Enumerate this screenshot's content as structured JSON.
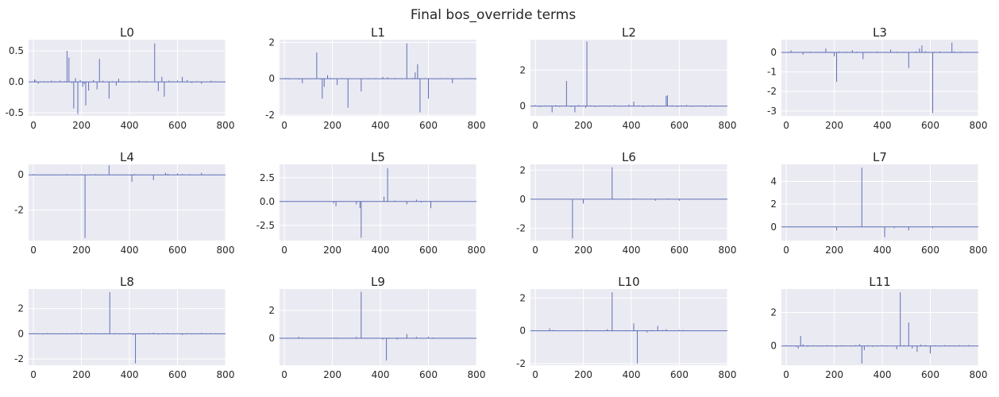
{
  "figure": {
    "suptitle": "Final bos_override terms"
  },
  "colors": {
    "axes_bg": "#EAEAF2",
    "grid": "#FFFFFF",
    "bar": "#5A6BB5",
    "text": "#262626"
  },
  "chart_data": [
    {
      "type": "bar",
      "title": "L0",
      "xlim": [
        -20,
        800
      ],
      "ylim": [
        -0.55,
        0.68
      ],
      "xticks": [
        0,
        200,
        400,
        600,
        800
      ],
      "yticks": [
        -0.5,
        0.0,
        0.5
      ],
      "ytick_labels": [
        "-0.5",
        "0.0",
        "0.5"
      ],
      "x": [
        5,
        10,
        20,
        30,
        45,
        60,
        75,
        90,
        110,
        130,
        140,
        148,
        160,
        168,
        175,
        185,
        195,
        205,
        212,
        218,
        230,
        250,
        265,
        275,
        290,
        315,
        330,
        345,
        355,
        380,
        410,
        440,
        470,
        505,
        520,
        535,
        545,
        565,
        580,
        600,
        620,
        640,
        660,
        680,
        700,
        740,
        760
      ],
      "values": [
        0.04,
        0.02,
        -0.03,
        0.01,
        0.01,
        -0.01,
        0.02,
        0.01,
        0.02,
        0.01,
        0.5,
        0.39,
        -0.02,
        -0.43,
        0.06,
        -0.52,
        0.03,
        -0.08,
        -0.04,
        -0.38,
        -0.14,
        0.03,
        -0.12,
        0.37,
        0.02,
        -0.27,
        0.01,
        -0.06,
        0.05,
        0.01,
        0.01,
        0.02,
        0.01,
        0.62,
        -0.15,
        0.08,
        -0.24,
        0.02,
        0.01,
        0.02,
        0.08,
        0.03,
        -0.02,
        0.01,
        -0.03,
        0.02,
        0.01
      ]
    },
    {
      "type": "bar",
      "title": "L1",
      "xlim": [
        -20,
        800
      ],
      "ylim": [
        -2.05,
        2.15
      ],
      "xticks": [
        0,
        200,
        400,
        600,
        800
      ],
      "yticks": [
        -2,
        0,
        2
      ],
      "ytick_labels": [
        "-2",
        "0",
        "2"
      ],
      "x": [
        5,
        20,
        40,
        60,
        75,
        95,
        115,
        135,
        150,
        158,
        166,
        180,
        192,
        205,
        220,
        240,
        265,
        290,
        320,
        350,
        380,
        410,
        430,
        460,
        490,
        510,
        535,
        545,
        555,
        565,
        585,
        600,
        625,
        650,
        680,
        700,
        730,
        760
      ],
      "values": [
        0.05,
        -0.03,
        0.02,
        -0.04,
        -0.25,
        0.01,
        0.02,
        1.45,
        -0.02,
        -1.1,
        -0.45,
        0.2,
        0.05,
        0.01,
        -0.35,
        0.03,
        -1.6,
        0.02,
        -0.7,
        0.01,
        0.03,
        0.1,
        0.08,
        0.04,
        0.02,
        1.95,
        0.05,
        0.35,
        0.8,
        -1.85,
        0.03,
        -1.1,
        0.01,
        0.02,
        0.03,
        -0.25,
        0.02,
        0.03
      ]
    },
    {
      "type": "bar",
      "title": "L2",
      "xlim": [
        -20,
        800
      ],
      "ylim": [
        -0.55,
        3.7
      ],
      "xticks": [
        0,
        200,
        400,
        600,
        800
      ],
      "yticks": [
        0,
        2
      ],
      "ytick_labels": [
        "0",
        "2"
      ],
      "x": [
        0,
        20,
        40,
        60,
        70,
        85,
        100,
        115,
        130,
        150,
        165,
        180,
        200,
        210,
        215,
        230,
        250,
        270,
        290,
        310,
        330,
        350,
        375,
        390,
        410,
        430,
        450,
        470,
        490,
        510,
        530,
        545,
        550,
        570,
        590,
        610,
        630,
        650,
        670,
        690,
        710,
        730,
        750,
        770
      ],
      "values": [
        0.05,
        -0.05,
        0.03,
        0.02,
        -0.35,
        0.05,
        -0.04,
        0.02,
        1.4,
        -0.05,
        -0.35,
        0.05,
        0.03,
        -0.1,
        3.6,
        0.04,
        -0.05,
        0.03,
        0.02,
        -0.04,
        0.05,
        -0.03,
        0.02,
        0.08,
        0.25,
        0.04,
        -0.06,
        0.03,
        0.05,
        -0.04,
        0.02,
        0.55,
        0.6,
        0.04,
        -0.05,
        0.03,
        0.06,
        -0.04,
        0.02,
        0.03,
        -0.05,
        0.04,
        -0.03,
        0.02
      ]
    },
    {
      "type": "bar",
      "title": "L3",
      "xlim": [
        -20,
        800
      ],
      "ylim": [
        -3.25,
        0.65
      ],
      "xticks": [
        0,
        200,
        400,
        600,
        800
      ],
      "yticks": [
        -3,
        -2,
        -1,
        0
      ],
      "ytick_labels": [
        "-3",
        "-2",
        "-1",
        "0"
      ],
      "x": [
        20,
        45,
        70,
        100,
        130,
        150,
        165,
        185,
        200,
        210,
        220,
        250,
        275,
        295,
        320,
        350,
        380,
        410,
        435,
        460,
        485,
        510,
        540,
        555,
        565,
        580,
        610,
        640,
        670,
        690,
        700,
        730,
        750
      ],
      "values": [
        0.1,
        0.02,
        -0.12,
        0.04,
        0.02,
        0.03,
        0.2,
        0.03,
        -0.2,
        -1.5,
        0.05,
        0.03,
        0.12,
        0.04,
        -0.35,
        0.03,
        0.05,
        0.02,
        0.15,
        0.04,
        0.03,
        -0.8,
        0.05,
        0.2,
        0.35,
        0.06,
        -3.1,
        0.05,
        0.03,
        0.5,
        0.05,
        0.04,
        0.03
      ]
    },
    {
      "type": "bar",
      "title": "L4",
      "xlim": [
        -20,
        800
      ],
      "ylim": [
        -3.75,
        0.6
      ],
      "xticks": [
        0,
        200,
        400,
        600,
        800
      ],
      "yticks": [
        -2,
        0
      ],
      "ytick_labels": [
        "-2",
        "0"
      ],
      "x": [
        0,
        30,
        70,
        140,
        200,
        215,
        260,
        315,
        360,
        410,
        420,
        450,
        500,
        550,
        560,
        600,
        620,
        650,
        700,
        750
      ],
      "values": [
        0.05,
        0.03,
        0.02,
        0.05,
        0.04,
        -3.6,
        0.05,
        0.55,
        0.03,
        -0.4,
        0.05,
        0.03,
        -0.3,
        0.12,
        0.06,
        0.08,
        0.05,
        0.04,
        0.12,
        0.03
      ]
    },
    {
      "type": "bar",
      "title": "L5",
      "xlim": [
        -20,
        800
      ],
      "ylim": [
        -4.1,
        3.9
      ],
      "xticks": [
        0,
        200,
        400,
        600,
        800
      ],
      "yticks": [
        -2.5,
        0.0,
        2.5
      ],
      "ytick_labels": [
        "-2.5",
        "0.0",
        "2.5"
      ],
      "x": [
        205,
        215,
        300,
        315,
        320,
        415,
        430,
        460,
        510,
        550,
        570,
        610
      ],
      "values": [
        -0.2,
        -0.5,
        -0.3,
        -0.7,
        -3.8,
        0.5,
        3.5,
        0.1,
        -0.3,
        0.2,
        -0.1,
        -0.7
      ]
    },
    {
      "type": "bar",
      "title": "L6",
      "xlim": [
        -20,
        800
      ],
      "ylim": [
        -2.85,
        2.4
      ],
      "xticks": [
        0,
        200,
        400,
        600,
        800
      ],
      "yticks": [
        -2,
        0,
        2
      ],
      "ytick_labels": [
        "-2",
        "0",
        "2"
      ],
      "x": [
        155,
        200,
        320,
        410,
        500,
        550,
        600
      ],
      "values": [
        -2.7,
        -0.3,
        2.2,
        0.05,
        -0.1,
        0.05,
        -0.1
      ]
    },
    {
      "type": "bar",
      "title": "L7",
      "xlim": [
        -20,
        800
      ],
      "ylim": [
        -1.2,
        5.5
      ],
      "xticks": [
        0,
        200,
        400,
        600,
        800
      ],
      "yticks": [
        0,
        2,
        4
      ],
      "ytick_labels": [
        "0",
        "2",
        "4"
      ],
      "x": [
        0,
        50,
        100,
        150,
        200,
        210,
        250,
        300,
        315,
        350,
        380,
        410,
        450,
        490,
        510,
        560,
        610,
        650,
        700,
        750,
        770
      ],
      "values": [
        0.03,
        0.02,
        0.03,
        0.02,
        0.05,
        -0.3,
        0.03,
        0.05,
        5.2,
        0.04,
        0.05,
        -0.9,
        -0.1,
        0.05,
        -0.3,
        0.04,
        -0.1,
        0.03,
        0.03,
        0.02,
        0.03
      ]
    },
    {
      "type": "bar",
      "title": "L8",
      "xlim": [
        -20,
        800
      ],
      "ylim": [
        -2.5,
        3.55
      ],
      "xticks": [
        0,
        200,
        400,
        600,
        800
      ],
      "yticks": [
        -2,
        0,
        2
      ],
      "ytick_labels": [
        "-2",
        "0",
        "2"
      ],
      "x": [
        0,
        20,
        40,
        60,
        80,
        100,
        120,
        140,
        160,
        180,
        200,
        220,
        240,
        260,
        280,
        300,
        318,
        340,
        360,
        380,
        400,
        415,
        425,
        440,
        460,
        480,
        500,
        520,
        540,
        560,
        580,
        600,
        620,
        640,
        660,
        680,
        700,
        720,
        740,
        760
      ],
      "values": [
        0.05,
        0.03,
        -0.04,
        0.06,
        0.02,
        -0.05,
        0.04,
        0.03,
        -0.03,
        0.05,
        0.08,
        -0.04,
        0.03,
        0.05,
        -0.02,
        0.04,
        3.3,
        0.05,
        -0.04,
        0.03,
        0.06,
        -0.1,
        -2.35,
        -0.05,
        0.03,
        0.05,
        0.08,
        -0.04,
        0.03,
        0.06,
        -0.03,
        0.04,
        -0.1,
        0.05,
        -0.03,
        0.04,
        0.06,
        -0.03,
        0.05,
        0.04
      ]
    },
    {
      "type": "bar",
      "title": "L9",
      "xlim": [
        -20,
        800
      ],
      "ylim": [
        -1.95,
        3.55
      ],
      "xticks": [
        0,
        200,
        400,
        600,
        800
      ],
      "yticks": [
        0,
        2
      ],
      "ytick_labels": [
        "0",
        "2"
      ],
      "x": [
        60,
        75,
        215,
        300,
        320,
        410,
        425,
        435,
        470,
        510,
        550,
        600,
        620
      ],
      "values": [
        0.1,
        0.05,
        0.05,
        0.1,
        3.35,
        -0.1,
        -1.6,
        -0.05,
        -0.1,
        0.3,
        0.1,
        0.1,
        0.05
      ]
    },
    {
      "type": "bar",
      "title": "L10",
      "xlim": [
        -20,
        800
      ],
      "ylim": [
        -2.1,
        2.55
      ],
      "xticks": [
        0,
        200,
        400,
        600,
        800
      ],
      "yticks": [
        -2,
        0,
        2
      ],
      "ytick_labels": [
        "-2",
        "0",
        "2"
      ],
      "x": [
        60,
        75,
        215,
        300,
        320,
        410,
        425,
        465,
        485,
        510,
        530,
        545,
        600,
        615
      ],
      "values": [
        0.15,
        0.05,
        0.05,
        0.1,
        2.35,
        0.45,
        -2.0,
        -0.1,
        0.05,
        0.3,
        0.05,
        0.1,
        0.05,
        0.05
      ]
    },
    {
      "type": "bar",
      "title": "L11",
      "xlim": [
        -20,
        800
      ],
      "ylim": [
        -1.15,
        3.4
      ],
      "xticks": [
        0,
        200,
        400,
        600,
        800
      ],
      "yticks": [
        0,
        2
      ],
      "ytick_labels": [
        "0",
        "2"
      ],
      "x": [
        0,
        20,
        40,
        50,
        60,
        70,
        90,
        110,
        130,
        150,
        170,
        190,
        210,
        230,
        250,
        270,
        290,
        305,
        315,
        325,
        340,
        360,
        380,
        400,
        420,
        440,
        460,
        475,
        490,
        510,
        525,
        545,
        560,
        580,
        600,
        620,
        640,
        660,
        680,
        700,
        720,
        740,
        760
      ],
      "values": [
        0.05,
        0.03,
        -0.05,
        -0.15,
        0.6,
        0.1,
        -0.05,
        0.04,
        0.03,
        -0.04,
        0.05,
        0.03,
        -0.05,
        0.04,
        0.02,
        -0.03,
        0.05,
        0.12,
        -1.05,
        -0.25,
        0.04,
        -0.05,
        0.03,
        0.05,
        -0.04,
        0.03,
        -0.2,
        3.2,
        0.05,
        1.4,
        -0.15,
        -0.35,
        0.08,
        0.05,
        -0.45,
        0.04,
        -0.03,
        0.05,
        0.03,
        -0.04,
        0.05,
        0.03,
        0.05
      ]
    }
  ]
}
